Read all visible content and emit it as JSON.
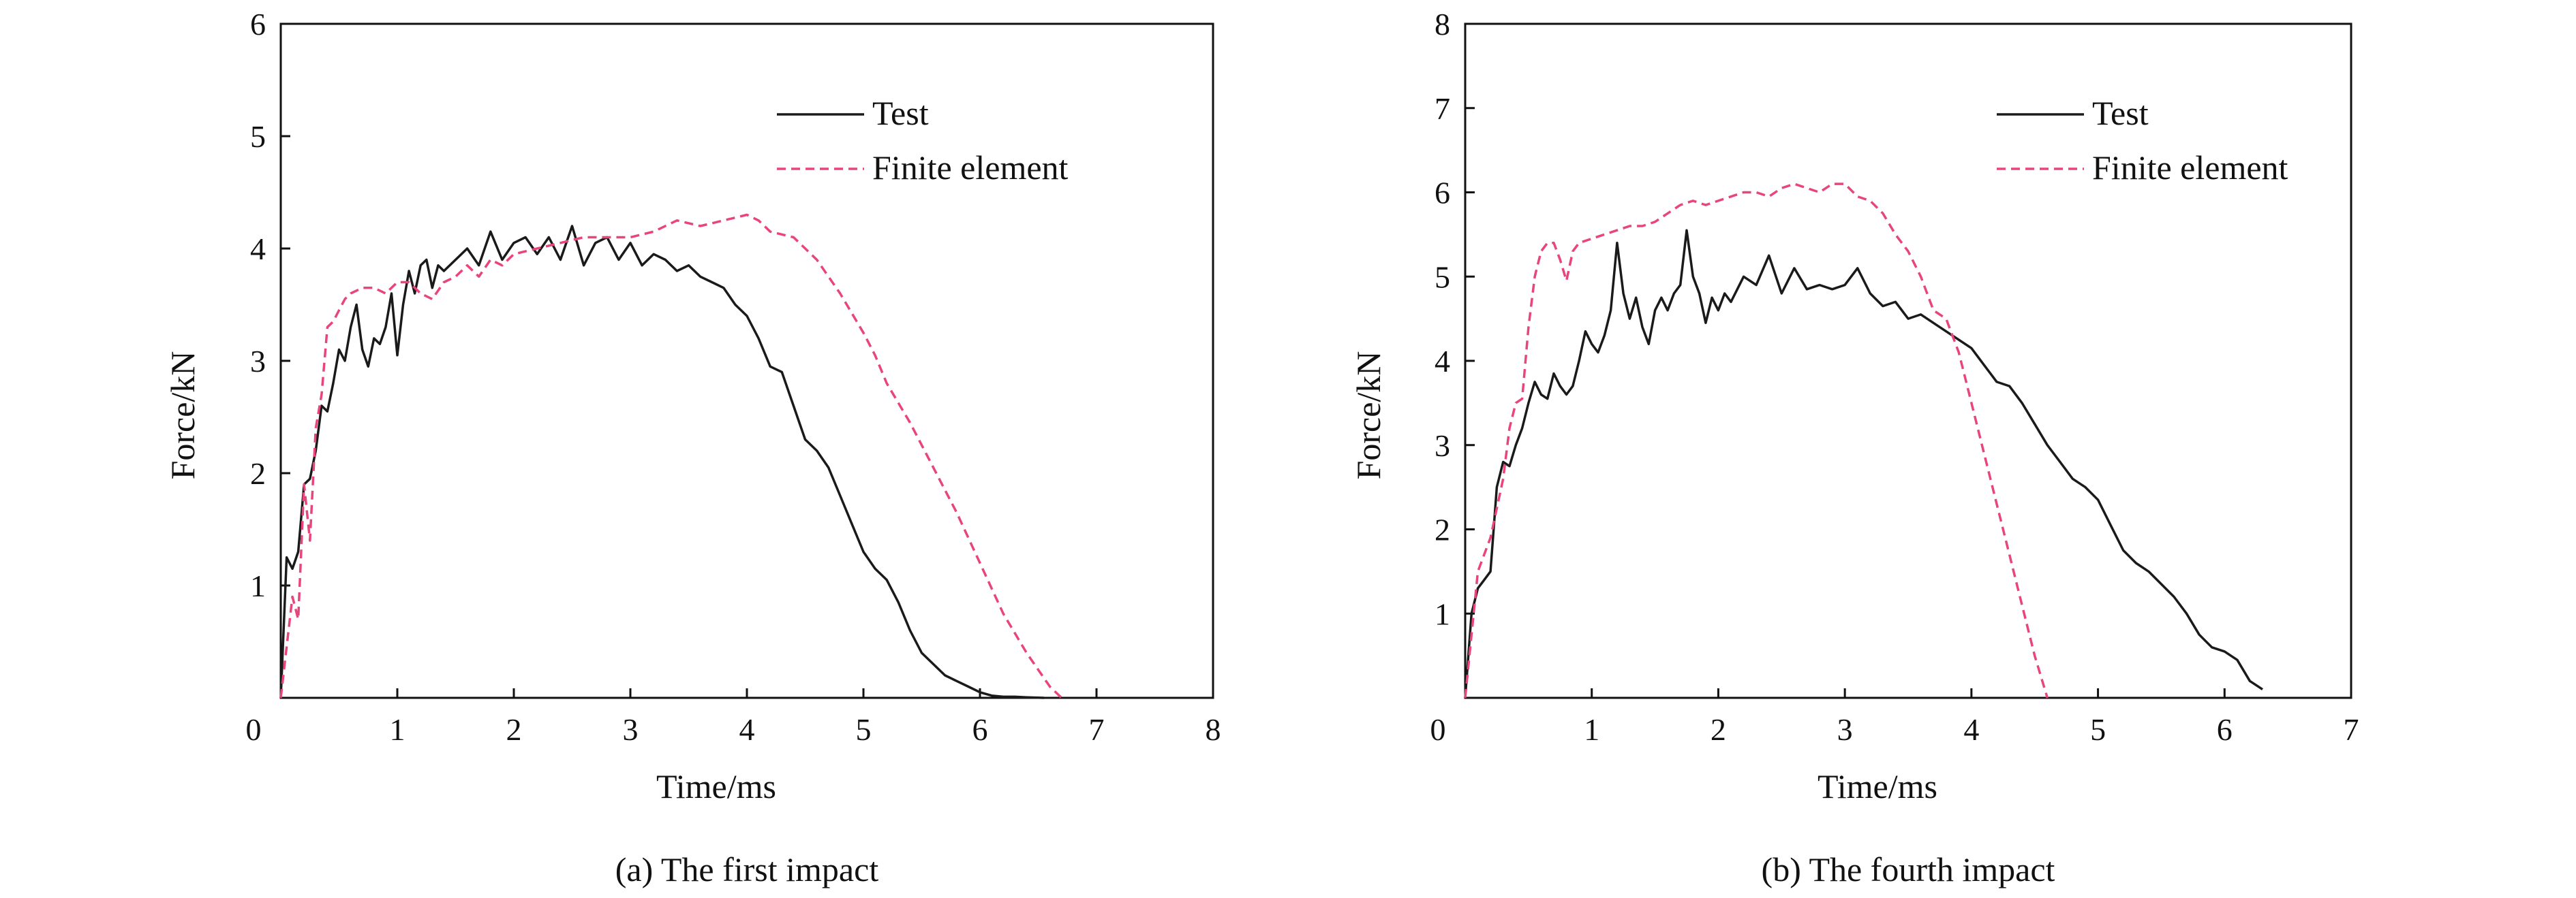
{
  "colors": {
    "test": "#1a1a1a",
    "finite_element": "#e8457a"
  },
  "chart_data": [
    {
      "type": "line",
      "caption": "(a) The first impact",
      "xlabel": "Time/ms",
      "ylabel": "Force/kN",
      "xlim": [
        0,
        8
      ],
      "ylim": [
        0,
        6
      ],
      "xticks": [
        "0",
        "1",
        "2",
        "3",
        "4",
        "5",
        "6",
        "7",
        "8"
      ],
      "yticks": [
        "1",
        "2",
        "3",
        "4",
        "5",
        "6"
      ],
      "origin_label": "0",
      "legend_position": "top-right",
      "grid": false,
      "series": [
        {
          "name": "Test",
          "style": "solid",
          "x": [
            0,
            0.05,
            0.1,
            0.15,
            0.2,
            0.25,
            0.3,
            0.35,
            0.4,
            0.45,
            0.5,
            0.55,
            0.6,
            0.65,
            0.7,
            0.75,
            0.8,
            0.85,
            0.9,
            0.95,
            1.0,
            1.05,
            1.1,
            1.15,
            1.2,
            1.25,
            1.3,
            1.35,
            1.4,
            1.5,
            1.6,
            1.7,
            1.8,
            1.9,
            2.0,
            2.1,
            2.2,
            2.3,
            2.4,
            2.5,
            2.6,
            2.7,
            2.8,
            2.9,
            3.0,
            3.1,
            3.2,
            3.3,
            3.4,
            3.5,
            3.6,
            3.7,
            3.8,
            3.9,
            4.0,
            4.1,
            4.2,
            4.3,
            4.4,
            4.5,
            4.6,
            4.7,
            4.8,
            4.9,
            5.0,
            5.1,
            5.2,
            5.3,
            5.4,
            5.5,
            5.6,
            5.7,
            5.8,
            5.9,
            6.0,
            6.1,
            6.2,
            6.3,
            6.4,
            6.5,
            6.55
          ],
          "y": [
            0,
            1.25,
            1.15,
            1.3,
            1.9,
            1.95,
            2.2,
            2.6,
            2.55,
            2.8,
            3.1,
            3.0,
            3.3,
            3.5,
            3.1,
            2.95,
            3.2,
            3.15,
            3.3,
            3.6,
            3.05,
            3.5,
            3.8,
            3.6,
            3.85,
            3.9,
            3.65,
            3.85,
            3.8,
            3.9,
            4.0,
            3.85,
            4.15,
            3.9,
            4.05,
            4.1,
            3.95,
            4.1,
            3.9,
            4.2,
            3.85,
            4.05,
            4.1,
            3.9,
            4.05,
            3.85,
            3.95,
            3.9,
            3.8,
            3.85,
            3.75,
            3.7,
            3.65,
            3.5,
            3.4,
            3.2,
            2.95,
            2.9,
            2.6,
            2.3,
            2.2,
            2.05,
            1.8,
            1.55,
            1.3,
            1.15,
            1.05,
            0.85,
            0.6,
            0.4,
            0.3,
            0.2,
            0.15,
            0.1,
            0.05,
            0.02,
            0.01,
            0.01,
            0.005,
            0.002,
            0.0
          ],
          "note_x_offset": 0.15
        },
        {
          "name": "Finite element",
          "style": "dashed",
          "x": [
            0,
            0.1,
            0.15,
            0.2,
            0.25,
            0.3,
            0.35,
            0.4,
            0.45,
            0.5,
            0.55,
            0.6,
            0.7,
            0.8,
            0.9,
            1.0,
            1.1,
            1.2,
            1.3,
            1.4,
            1.5,
            1.6,
            1.7,
            1.8,
            1.9,
            2.0,
            2.2,
            2.4,
            2.6,
            2.8,
            3.0,
            3.2,
            3.4,
            3.6,
            3.8,
            4.0,
            4.1,
            4.2,
            4.4,
            4.6,
            4.8,
            5.0,
            5.1,
            5.2,
            5.4,
            5.6,
            5.8,
            6.0,
            6.2,
            6.4,
            6.6,
            6.7
          ],
          "y": [
            0,
            0.9,
            0.7,
            1.9,
            1.4,
            2.4,
            2.7,
            3.3,
            3.35,
            3.45,
            3.55,
            3.6,
            3.65,
            3.65,
            3.6,
            3.7,
            3.7,
            3.6,
            3.55,
            3.7,
            3.75,
            3.85,
            3.75,
            3.9,
            3.85,
            3.95,
            4.0,
            4.05,
            4.1,
            4.1,
            4.1,
            4.15,
            4.25,
            4.2,
            4.25,
            4.3,
            4.25,
            4.15,
            4.1,
            3.9,
            3.6,
            3.25,
            3.05,
            2.8,
            2.45,
            2.05,
            1.65,
            1.2,
            0.75,
            0.4,
            0.1,
            0.0
          ],
          "note_x_offset": 0.15
        }
      ]
    },
    {
      "type": "line",
      "caption": "(b) The fourth impact",
      "xlabel": "Time/ms",
      "ylabel": "Force/kN",
      "xlim": [
        0,
        7
      ],
      "ylim": [
        0,
        8
      ],
      "xticks": [
        "0",
        "1",
        "2",
        "3",
        "4",
        "5",
        "6",
        "7"
      ],
      "yticks": [
        "1",
        "2",
        "3",
        "4",
        "5",
        "6",
        "7",
        "8"
      ],
      "origin_label": "0",
      "legend_position": "top-right",
      "grid": false,
      "series": [
        {
          "name": "Test",
          "style": "solid",
          "x": [
            0,
            0.05,
            0.1,
            0.15,
            0.2,
            0.25,
            0.3,
            0.35,
            0.4,
            0.45,
            0.5,
            0.55,
            0.6,
            0.65,
            0.7,
            0.75,
            0.8,
            0.85,
            0.9,
            0.95,
            1.0,
            1.05,
            1.1,
            1.15,
            1.2,
            1.25,
            1.3,
            1.35,
            1.4,
            1.45,
            1.5,
            1.55,
            1.6,
            1.65,
            1.7,
            1.75,
            1.8,
            1.85,
            1.9,
            1.95,
            2.0,
            2.05,
            2.1,
            2.15,
            2.2,
            2.3,
            2.4,
            2.5,
            2.6,
            2.7,
            2.8,
            2.9,
            3.0,
            3.1,
            3.2,
            3.3,
            3.4,
            3.5,
            3.6,
            3.7,
            3.8,
            3.9,
            4.0,
            4.1,
            4.2,
            4.3,
            4.4,
            4.5,
            4.6,
            4.7,
            4.8,
            4.9,
            5.0,
            5.1,
            5.2,
            5.3,
            5.4,
            5.5,
            5.6,
            5.7,
            5.8,
            5.9,
            6.0,
            6.1,
            6.2,
            6.3
          ],
          "y": [
            0,
            1.0,
            1.3,
            1.4,
            1.5,
            2.5,
            2.8,
            2.75,
            3.0,
            3.2,
            3.5,
            3.75,
            3.6,
            3.55,
            3.85,
            3.7,
            3.6,
            3.7,
            4.0,
            4.35,
            4.2,
            4.1,
            4.3,
            4.6,
            5.4,
            4.8,
            4.5,
            4.75,
            4.4,
            4.2,
            4.6,
            4.75,
            4.6,
            4.8,
            4.9,
            5.55,
            5.0,
            4.8,
            4.45,
            4.75,
            4.6,
            4.8,
            4.7,
            4.85,
            5.0,
            4.9,
            5.25,
            4.8,
            5.1,
            4.85,
            4.9,
            4.85,
            4.9,
            5.1,
            4.8,
            4.65,
            4.7,
            4.5,
            4.55,
            4.45,
            4.35,
            4.25,
            4.15,
            3.95,
            3.75,
            3.7,
            3.5,
            3.25,
            3.0,
            2.8,
            2.6,
            2.5,
            2.35,
            2.05,
            1.75,
            1.6,
            1.5,
            1.35,
            1.2,
            1.0,
            0.75,
            0.6,
            0.55,
            0.45,
            0.2,
            0.1
          ],
          "note_x_offset": 0
        },
        {
          "name": "Finite element",
          "style": "dashed",
          "x": [
            0,
            0.1,
            0.2,
            0.3,
            0.35,
            0.4,
            0.45,
            0.5,
            0.55,
            0.6,
            0.65,
            0.7,
            0.75,
            0.8,
            0.85,
            0.9,
            1.0,
            1.1,
            1.2,
            1.3,
            1.4,
            1.5,
            1.6,
            1.7,
            1.8,
            1.9,
            2.0,
            2.1,
            2.2,
            2.3,
            2.4,
            2.5,
            2.6,
            2.7,
            2.8,
            2.9,
            3.0,
            3.1,
            3.2,
            3.3,
            3.4,
            3.5,
            3.6,
            3.7,
            3.8,
            3.9,
            4.0,
            4.1,
            4.2,
            4.3,
            4.4,
            4.5,
            4.6
          ],
          "y": [
            0,
            1.5,
            1.9,
            2.6,
            3.2,
            3.5,
            3.55,
            4.4,
            5.0,
            5.3,
            5.4,
            5.4,
            5.2,
            4.95,
            5.3,
            5.4,
            5.45,
            5.5,
            5.55,
            5.6,
            5.6,
            5.65,
            5.75,
            5.85,
            5.9,
            5.85,
            5.9,
            5.95,
            6.0,
            6.0,
            5.95,
            6.05,
            6.1,
            6.05,
            6.0,
            6.1,
            6.1,
            5.95,
            5.9,
            5.75,
            5.5,
            5.3,
            5.0,
            4.6,
            4.5,
            4.1,
            3.5,
            2.9,
            2.3,
            1.7,
            1.1,
            0.5,
            0.0
          ],
          "note_x_offset": 0
        }
      ]
    }
  ]
}
